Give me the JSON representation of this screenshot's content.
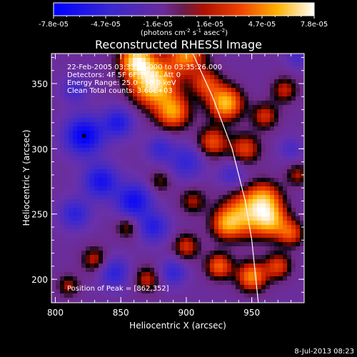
{
  "chart_data": {
    "type": "heatmap",
    "title": "Reconstructed RHESSI Image",
    "xlabel": "Heliocentric X (arcsec)",
    "ylabel": "Heliocentric Y (arcsec)",
    "xlim": [
      797,
      990
    ],
    "ylim": [
      182,
      373
    ],
    "x_ticks": [
      800,
      850,
      900,
      950
    ],
    "y_ticks": [
      200,
      250,
      300,
      350
    ],
    "x_tick_labels": [
      "800",
      "850",
      "900",
      "950"
    ],
    "y_tick_labels": [
      "200",
      "250",
      "300",
      "350"
    ],
    "colorbar": {
      "min": -7.8e-05,
      "max": 7.8e-05,
      "tick_labels": [
        "-7.8e-05",
        "-4.7e-05",
        "-1.6e-05",
        "1.6e-05",
        "4.7e-05",
        "7.8e-05"
      ],
      "unit_main": "(photons cm",
      "unit_exp1": "-2",
      "unit_mid1": " s",
      "unit_exp2": "-1",
      "unit_mid2": " asec",
      "unit_exp3": "-2",
      "unit_end": ")"
    },
    "annotations": {
      "line1": "22-Feb-2005 03:33:56.000  to  03:35:26.000",
      "line2": "Detectors: 4F 5F 6F 7F 8F, Att 0",
      "line3": "Energy Range: 25.0 - 50.0 keV",
      "line4": "Clean     Total counts: 3.60E+03",
      "peak_label": "Position of Peak = [862,352]"
    },
    "peak": {
      "x": 862,
      "y": 352
    },
    "blobs": [
      {
        "x": 875,
        "y": 350,
        "s": 12,
        "a": 1.0
      },
      {
        "x": 862,
        "y": 368,
        "s": 9,
        "a": 0.9
      },
      {
        "x": 890,
        "y": 328,
        "s": 9,
        "a": 0.7
      },
      {
        "x": 900,
        "y": 372,
        "s": 10,
        "a": 0.7
      },
      {
        "x": 930,
        "y": 335,
        "s": 9,
        "a": 0.85
      },
      {
        "x": 915,
        "y": 350,
        "s": 8,
        "a": 0.5
      },
      {
        "x": 920,
        "y": 305,
        "s": 8,
        "a": 0.55
      },
      {
        "x": 945,
        "y": 300,
        "s": 8,
        "a": 0.5
      },
      {
        "x": 960,
        "y": 325,
        "s": 7,
        "a": 0.45
      },
      {
        "x": 975,
        "y": 345,
        "s": 7,
        "a": 0.4
      },
      {
        "x": 960,
        "y": 262,
        "s": 9,
        "a": 0.6
      },
      {
        "x": 945,
        "y": 250,
        "s": 12,
        "a": 0.75
      },
      {
        "x": 965,
        "y": 245,
        "s": 9,
        "a": 0.7
      },
      {
        "x": 930,
        "y": 242,
        "s": 8,
        "a": 0.55
      },
      {
        "x": 980,
        "y": 235,
        "s": 7,
        "a": 0.5
      },
      {
        "x": 925,
        "y": 210,
        "s": 7,
        "a": 0.6
      },
      {
        "x": 950,
        "y": 202,
        "s": 8,
        "a": 0.7
      },
      {
        "x": 970,
        "y": 210,
        "s": 7,
        "a": 0.5
      },
      {
        "x": 900,
        "y": 225,
        "s": 7,
        "a": 0.45
      },
      {
        "x": 905,
        "y": 260,
        "s": 7,
        "a": 0.35
      },
      {
        "x": 880,
        "y": 275,
        "s": 6,
        "a": 0.3
      },
      {
        "x": 855,
        "y": 240,
        "s": 6,
        "a": 0.35
      },
      {
        "x": 830,
        "y": 215,
        "s": 7,
        "a": 0.4
      },
      {
        "x": 810,
        "y": 195,
        "s": 6,
        "a": 0.35
      },
      {
        "x": 870,
        "y": 200,
        "s": 7,
        "a": 0.4
      },
      {
        "x": 985,
        "y": 280,
        "s": 6,
        "a": 0.35
      },
      {
        "x": 822,
        "y": 310,
        "s": 10,
        "a": -0.9
      },
      {
        "x": 848,
        "y": 320,
        "s": 8,
        "a": -0.6
      },
      {
        "x": 835,
        "y": 275,
        "s": 9,
        "a": -0.7
      },
      {
        "x": 815,
        "y": 250,
        "s": 8,
        "a": -0.5
      },
      {
        "x": 860,
        "y": 260,
        "s": 9,
        "a": -0.75
      },
      {
        "x": 875,
        "y": 240,
        "s": 8,
        "a": -0.55
      },
      {
        "x": 845,
        "y": 205,
        "s": 8,
        "a": -0.5
      },
      {
        "x": 890,
        "y": 205,
        "s": 7,
        "a": -0.45
      },
      {
        "x": 900,
        "y": 290,
        "s": 9,
        "a": -0.45
      },
      {
        "x": 880,
        "y": 300,
        "s": 7,
        "a": -0.4
      },
      {
        "x": 935,
        "y": 280,
        "s": 7,
        "a": -0.35
      },
      {
        "x": 815,
        "y": 345,
        "s": 7,
        "a": -0.35
      },
      {
        "x": 980,
        "y": 300,
        "s": 6,
        "a": -0.3
      },
      {
        "x": 985,
        "y": 370,
        "s": 6,
        "a": -0.3
      }
    ],
    "limb": [
      [
        905,
        373
      ],
      [
        920,
        340
      ],
      [
        935,
        300
      ],
      [
        945,
        260
      ],
      [
        950,
        230
      ],
      [
        955,
        182
      ]
    ]
  },
  "footer": {
    "date": "8-Jul-2013 08:23"
  },
  "colors": {
    "background": "#000000",
    "text": "#ffffff"
  }
}
